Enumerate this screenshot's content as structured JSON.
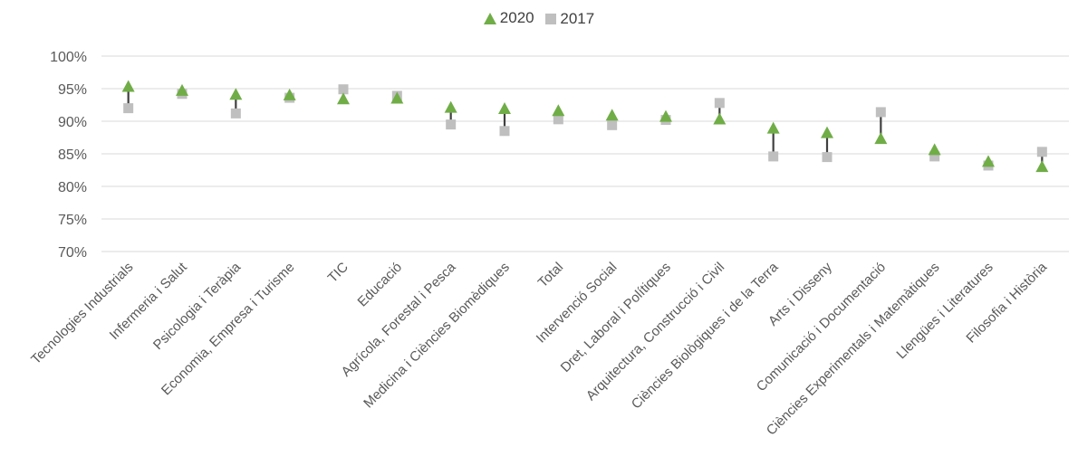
{
  "chart_data": {
    "type": "scatter",
    "categories": [
      "Tecnologies Industrials",
      "Infermeria i Salut",
      "Psicologia i Teràpia",
      "Economia, Empresa i Turisme",
      "TIC",
      "Educació",
      "Agrícola, Forestal i Pesca",
      "Medicina i Ciències Biomèdiques",
      "Total",
      "Intervenció Social",
      "Dret, Laboral i Polítiques",
      "Arquitectura, Construcció i Civil",
      "Ciències Biològiques i de la Terra",
      "Arts i Disseny",
      "Comunicació i Documentació",
      "Ciències Experimentals i Matemàtiques",
      "Llengües i Literatures",
      "Filosofia i Història"
    ],
    "series": [
      {
        "name": "2020",
        "marker": "triangle",
        "color": "#70AD47",
        "values": [
          95.2,
          94.6,
          94.0,
          93.9,
          93.3,
          93.4,
          92.0,
          91.8,
          91.5,
          90.8,
          90.6,
          90.2,
          88.8,
          88.1,
          87.2,
          85.5,
          83.7,
          82.9
        ]
      },
      {
        "name": "2017",
        "marker": "square",
        "color": "#BFBFBF",
        "values": [
          92.0,
          94.2,
          91.2,
          93.6,
          94.9,
          93.9,
          89.5,
          88.5,
          90.3,
          89.4,
          90.2,
          92.8,
          84.6,
          84.5,
          91.4,
          84.6,
          83.2,
          85.3
        ]
      }
    ],
    "y_ticks": [
      "70%",
      "75%",
      "80%",
      "85%",
      "90%",
      "95%",
      "100%"
    ],
    "ylim": [
      70,
      100
    ],
    "grid": true,
    "legend_position": "top-center",
    "connector_color": "#404040"
  }
}
